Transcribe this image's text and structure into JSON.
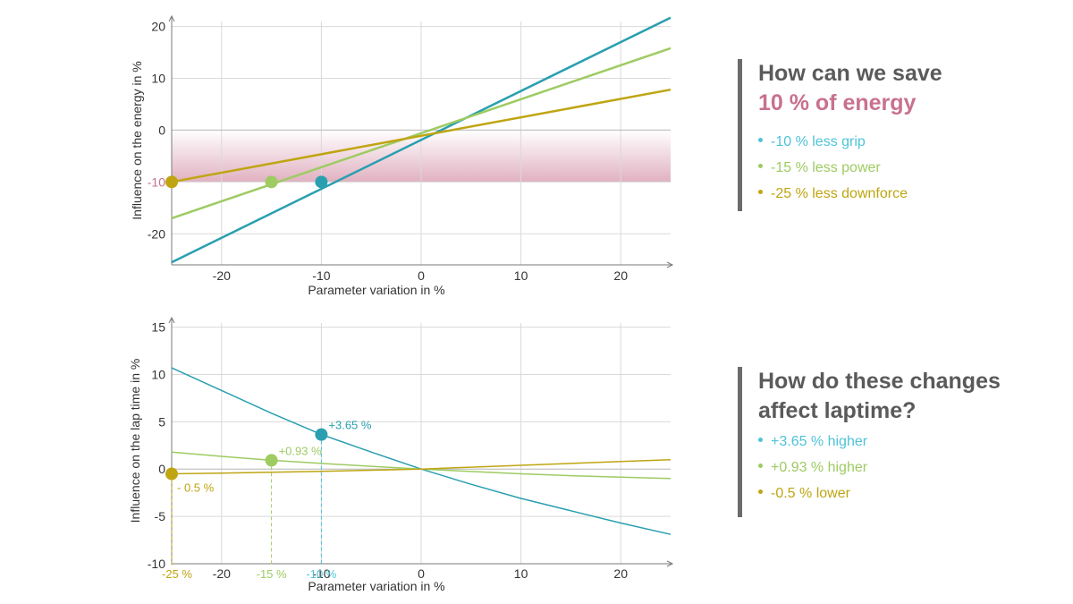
{
  "colors": {
    "grip": "#2a9fb0",
    "power": "#9ecb62",
    "downforce": "#bfa512",
    "highlight": "#c8718e",
    "grip_label": "#4fc3d8",
    "axis": "#7a7a7a",
    "grid": "#d9d9d9"
  },
  "panel_top": {
    "title_line1": "How can we save",
    "title_line2": "10 % of energy",
    "items": [
      {
        "text": "-10 % less grip",
        "series": "grip"
      },
      {
        "text": "-15 % less power",
        "series": "power"
      },
      {
        "text": "-25 % less downforce",
        "series": "downforce"
      }
    ]
  },
  "panel_bottom": {
    "title_line1": "How do these changes",
    "title_line2": "affect laptime?",
    "items": [
      {
        "text": "+3.65 % higher",
        "series": "grip"
      },
      {
        "text": "+0.93 % higher",
        "series": "power"
      },
      {
        "text": "-0.5 % lower",
        "series": "downforce"
      }
    ]
  },
  "chart_data": [
    {
      "type": "line",
      "title": "",
      "xlabel": "Parameter variation in %",
      "ylabel": "Influence on the energy in %",
      "xlim": [
        -25,
        25
      ],
      "ylim": [
        -26,
        22
      ],
      "xticks": [
        -20,
        -10,
        0,
        10,
        20
      ],
      "yticks": [
        -20,
        -10,
        0,
        10,
        20
      ],
      "highlight_band": [
        -10,
        0
      ],
      "highlight_tick": -10,
      "series": [
        {
          "name": "grip",
          "color_key": "grip",
          "x": [
            -25,
            25
          ],
          "y": [
            -25.5,
            21.7
          ]
        },
        {
          "name": "power",
          "color_key": "power",
          "x": [
            -25,
            25
          ],
          "y": [
            -17,
            15.8
          ]
        },
        {
          "name": "downforce",
          "color_key": "downforce",
          "x": [
            -25,
            25
          ],
          "y": [
            -10,
            7.8
          ]
        }
      ],
      "markers": [
        {
          "x": -25,
          "y": -10,
          "color_key": "downforce"
        },
        {
          "x": -15,
          "y": -10,
          "color_key": "power"
        },
        {
          "x": -10,
          "y": -10,
          "color_key": "grip"
        }
      ]
    },
    {
      "type": "line",
      "title": "",
      "xlabel": "Parameter variation in %",
      "ylabel": "Influence on the lap time in %",
      "xlim": [
        -25,
        25
      ],
      "ylim": [
        -10,
        16
      ],
      "xticks": [
        -20,
        -10,
        0,
        10,
        20
      ],
      "yticks": [
        -10,
        -5,
        0,
        5,
        10,
        15
      ],
      "special_xticks": [
        {
          "x": -25,
          "label": "-25 %",
          "color_key": "downforce"
        },
        {
          "x": -15,
          "label": "-15 %",
          "color_key": "power"
        },
        {
          "x": -10,
          "label": "-10 %",
          "color_key": "grip_label"
        }
      ],
      "series": [
        {
          "name": "grip",
          "color_key": "grip",
          "x": [
            -25,
            -20,
            -15,
            -10,
            -5,
            0,
            5,
            10,
            15,
            20,
            25
          ],
          "y": [
            10.7,
            8.3,
            5.9,
            3.65,
            1.8,
            0,
            -1.6,
            -3.1,
            -4.4,
            -5.7,
            -6.9
          ]
        },
        {
          "name": "power",
          "color_key": "power",
          "x": [
            -25,
            -20,
            -15,
            -10,
            -5,
            0,
            5,
            10,
            15,
            20,
            25
          ],
          "y": [
            1.8,
            1.35,
            0.93,
            0.6,
            0.3,
            0,
            -0.25,
            -0.5,
            -0.7,
            -0.85,
            -1.0
          ]
        },
        {
          "name": "downforce",
          "color_key": "downforce",
          "x": [
            -25,
            -20,
            -15,
            -10,
            -5,
            0,
            5,
            10,
            15,
            20,
            25
          ],
          "y": [
            -0.5,
            -0.42,
            -0.33,
            -0.23,
            -0.12,
            0,
            0.2,
            0.4,
            0.6,
            0.8,
            1.0
          ]
        }
      ],
      "markers": [
        {
          "x": -25,
          "y": -0.5,
          "color_key": "downforce",
          "label": "- 0.5 %",
          "label_pos": "below-right"
        },
        {
          "x": -15,
          "y": 0.93,
          "color_key": "power",
          "label": "+0.93 %",
          "label_pos": "above-right"
        },
        {
          "x": -10,
          "y": 3.65,
          "color_key": "grip",
          "label": "+3.65 %",
          "label_pos": "above-right"
        }
      ]
    }
  ]
}
